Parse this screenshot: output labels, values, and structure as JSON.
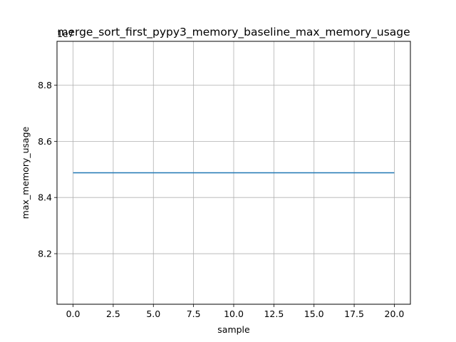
{
  "chart_data": {
    "type": "line",
    "title": "merge_sort_first_pypy3_memory_baseline_max_memory_usage",
    "xlabel": "sample",
    "ylabel": "max_memory_usage",
    "offset_label": "1e7",
    "xlim": [
      -1.0,
      21.0
    ],
    "ylim": [
      80200000,
      89560000
    ],
    "x_ticks": [
      0.0,
      2.5,
      5.0,
      7.5,
      10.0,
      12.5,
      15.0,
      17.5,
      20.0
    ],
    "x_tick_labels": [
      "0.0",
      "2.5",
      "5.0",
      "7.5",
      "10.0",
      "12.5",
      "15.0",
      "17.5",
      "20.0"
    ],
    "y_ticks": [
      82000000,
      84000000,
      86000000,
      88000000
    ],
    "y_tick_labels": [
      "8.2",
      "8.4",
      "8.6",
      "8.8"
    ],
    "grid": true,
    "series": [
      {
        "color": "#1f77b4",
        "x": [
          0,
          1,
          2,
          3,
          4,
          5,
          6,
          7,
          8,
          9,
          10,
          11,
          12,
          13,
          14,
          15,
          16,
          17,
          18,
          19,
          20
        ],
        "values": [
          84880000,
          84880000,
          84880000,
          84880000,
          84880000,
          84880000,
          84880000,
          84880000,
          84880000,
          84880000,
          84880000,
          84880000,
          84880000,
          84880000,
          84880000,
          84880000,
          84880000,
          84880000,
          84880000,
          84880000,
          84880000
        ]
      }
    ]
  }
}
